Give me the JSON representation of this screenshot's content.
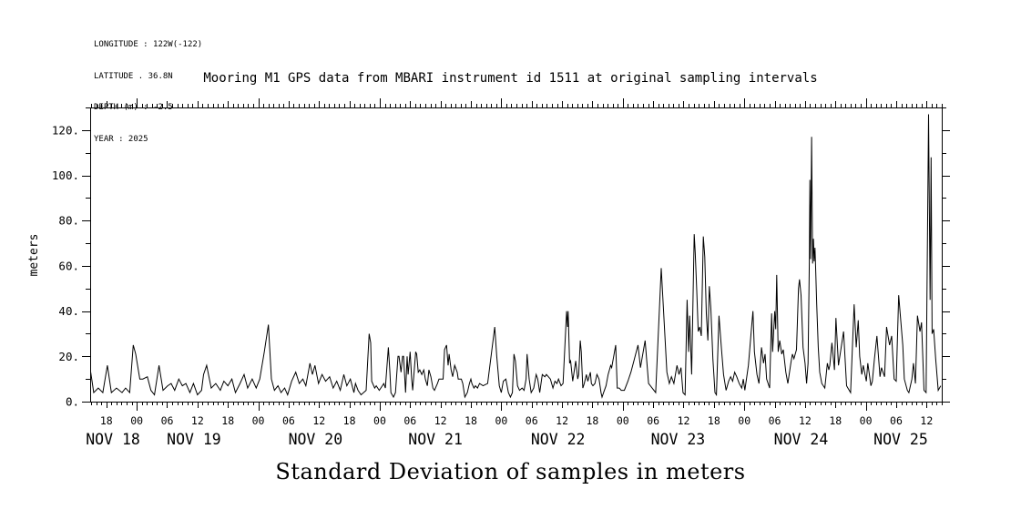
{
  "metadata_block": {
    "lines": [
      "LONGITUDE : 122W(-122)",
      "LATITUDE . 36.8N",
      "DEPTH (m) : -2.5",
      "YEAR : 2025"
    ]
  },
  "colors": {
    "line": "#000000",
    "text": "#000000",
    "background": "#ffffff"
  },
  "chart_data": {
    "type": "line",
    "title": "Mooring M1 GPS data from MBARI instrument id 1511 at original sampling intervals",
    "xlabel": "Standard Deviation of samples in meters",
    "ylabel": "meters",
    "ylim": [
      0,
      130
    ],
    "yticks": [
      0,
      20,
      40,
      60,
      80,
      100,
      120
    ],
    "ytick_label_suffix": ".",
    "ytick_minor_step": 10,
    "grid": "off",
    "legend": "none",
    "x_unit": "hours since Nov 18 00:00 (year 2025)",
    "x_hours_range": [
      14.8,
      183
    ],
    "minor_tick_hours": 1,
    "hour_ticks": [
      {
        "t": 18,
        "label": "18"
      },
      {
        "t": 24,
        "label": "00"
      },
      {
        "t": 30,
        "label": "06"
      },
      {
        "t": 36,
        "label": "12"
      },
      {
        "t": 42,
        "label": "18"
      },
      {
        "t": 48,
        "label": "00"
      },
      {
        "t": 54,
        "label": "06"
      },
      {
        "t": 60,
        "label": "12"
      },
      {
        "t": 66,
        "label": "18"
      },
      {
        "t": 72,
        "label": "00"
      },
      {
        "t": 78,
        "label": "06"
      },
      {
        "t": 84,
        "label": "12"
      },
      {
        "t": 90,
        "label": "18"
      },
      {
        "t": 96,
        "label": "00"
      },
      {
        "t": 102,
        "label": "06"
      },
      {
        "t": 108,
        "label": "12"
      },
      {
        "t": 114,
        "label": "18"
      },
      {
        "t": 120,
        "label": "00"
      },
      {
        "t": 126,
        "label": "06"
      },
      {
        "t": 132,
        "label": "12"
      },
      {
        "t": 138,
        "label": "18"
      },
      {
        "t": 144,
        "label": "00"
      },
      {
        "t": 150,
        "label": "06"
      },
      {
        "t": 156,
        "label": "12"
      },
      {
        "t": 162,
        "label": "18"
      },
      {
        "t": 168,
        "label": "00"
      },
      {
        "t": 174,
        "label": "06"
      },
      {
        "t": 180,
        "label": "12"
      }
    ],
    "day_labels": [
      {
        "t": 19.3,
        "label": "NOV 18"
      },
      {
        "t": 35.3,
        "label": "NOV 19"
      },
      {
        "t": 59.3,
        "label": "NOV 20"
      },
      {
        "t": 83,
        "label": "NOV 21"
      },
      {
        "t": 107.2,
        "label": "NOV 22"
      },
      {
        "t": 130.9,
        "label": "NOV 23"
      },
      {
        "t": 155.2,
        "label": "NOV 24"
      },
      {
        "t": 174.9,
        "label": "NOV 25"
      }
    ],
    "points": [
      [
        14.9,
        13
      ],
      [
        15.5,
        4
      ],
      [
        16.4,
        6
      ],
      [
        17.3,
        4
      ],
      [
        18.2,
        16
      ],
      [
        19,
        4
      ],
      [
        20,
        6
      ],
      [
        21.1,
        4
      ],
      [
        21.8,
        6
      ],
      [
        22.6,
        4
      ],
      [
        23.3,
        25
      ],
      [
        23.8,
        21
      ],
      [
        24.6,
        10
      ],
      [
        25.2,
        10
      ],
      [
        26.1,
        11
      ],
      [
        26.8,
        5
      ],
      [
        27.5,
        3
      ],
      [
        28.4,
        16
      ],
      [
        29.2,
        5
      ],
      [
        30.1,
        7
      ],
      [
        30.8,
        8
      ],
      [
        31.5,
        5
      ],
      [
        32.3,
        10
      ],
      [
        33,
        7
      ],
      [
        33.7,
        8
      ],
      [
        34.5,
        4
      ],
      [
        35.2,
        8
      ],
      [
        36,
        3
      ],
      [
        36.8,
        5
      ],
      [
        37.2,
        12
      ],
      [
        37.8,
        16
      ],
      [
        38.7,
        6
      ],
      [
        39.6,
        8
      ],
      [
        40.5,
        5
      ],
      [
        41.2,
        9
      ],
      [
        42,
        7
      ],
      [
        42.8,
        10
      ],
      [
        43.5,
        4
      ],
      [
        44.4,
        8
      ],
      [
        45.2,
        12
      ],
      [
        45.9,
        6
      ],
      [
        46.8,
        10
      ],
      [
        47.6,
        6
      ],
      [
        48.3,
        10
      ],
      [
        49.2,
        22
      ],
      [
        50,
        34
      ],
      [
        50.6,
        10
      ],
      [
        51.2,
        5
      ],
      [
        51.9,
        7
      ],
      [
        52.5,
        4
      ],
      [
        53.2,
        6
      ],
      [
        53.8,
        3
      ],
      [
        54.6,
        9
      ],
      [
        55.4,
        13
      ],
      [
        56.1,
        8
      ],
      [
        56.8,
        10
      ],
      [
        57.4,
        7
      ],
      [
        58.2,
        17
      ],
      [
        58.7,
        12
      ],
      [
        59.2,
        16
      ],
      [
        59.9,
        8
      ],
      [
        60.6,
        12
      ],
      [
        61.3,
        9
      ],
      [
        62.1,
        11
      ],
      [
        62.8,
        6
      ],
      [
        63.5,
        9
      ],
      [
        64.2,
        5
      ],
      [
        64.9,
        12
      ],
      [
        65.5,
        7
      ],
      [
        66.2,
        10
      ],
      [
        66.9,
        4
      ],
      [
        67.2,
        8
      ],
      [
        67.7,
        5
      ],
      [
        68.3,
        3
      ],
      [
        69.3,
        5
      ],
      [
        69.9,
        30
      ],
      [
        70.2,
        26
      ],
      [
        70.4,
        9
      ],
      [
        71,
        6
      ],
      [
        71.3,
        7
      ],
      [
        71.9,
        5
      ],
      [
        72.2,
        6
      ],
      [
        72.8,
        8
      ],
      [
        73.1,
        6
      ],
      [
        73.7,
        24
      ],
      [
        74,
        13
      ],
      [
        74.2,
        4
      ],
      [
        74.7,
        2
      ],
      [
        75.1,
        4
      ],
      [
        75.6,
        20
      ],
      [
        75.8,
        20
      ],
      [
        76.2,
        13
      ],
      [
        76.5,
        20
      ],
      [
        76.7,
        20
      ],
      [
        77.1,
        4
      ],
      [
        77.4,
        20
      ],
      [
        77.6,
        12
      ],
      [
        78,
        22
      ],
      [
        78.3,
        10
      ],
      [
        78.5,
        5
      ],
      [
        79.1,
        22
      ],
      [
        79.3,
        21
      ],
      [
        79.6,
        13
      ],
      [
        79.9,
        14
      ],
      [
        80.3,
        12
      ],
      [
        80.7,
        14
      ],
      [
        81,
        10
      ],
      [
        81.4,
        7
      ],
      [
        81.7,
        14
      ],
      [
        82.1,
        11
      ],
      [
        82.5,
        6
      ],
      [
        82.8,
        5
      ],
      [
        83.4,
        8
      ],
      [
        83.7,
        10
      ],
      [
        84.1,
        10
      ],
      [
        84.5,
        10
      ],
      [
        84.8,
        23
      ],
      [
        85.2,
        25
      ],
      [
        85.5,
        16
      ],
      [
        85.7,
        21
      ],
      [
        86.1,
        14
      ],
      [
        86.4,
        11
      ],
      [
        86.8,
        16
      ],
      [
        87.3,
        13
      ],
      [
        87.5,
        10
      ],
      [
        88.1,
        10
      ],
      [
        88.4,
        8
      ],
      [
        88.8,
        2
      ],
      [
        89.3,
        4
      ],
      [
        89.7,
        8
      ],
      [
        90,
        10
      ],
      [
        90.2,
        8
      ],
      [
        90.6,
        6
      ],
      [
        90.9,
        7
      ],
      [
        91.3,
        6
      ],
      [
        91.7,
        8
      ],
      [
        92.4,
        7
      ],
      [
        93.3,
        8
      ],
      [
        94.7,
        33
      ],
      [
        95.1,
        20
      ],
      [
        95.6,
        7
      ],
      [
        96,
        4
      ],
      [
        96.4,
        9
      ],
      [
        96.9,
        10
      ],
      [
        97.4,
        4
      ],
      [
        97.8,
        2
      ],
      [
        98.2,
        4
      ],
      [
        98.5,
        21
      ],
      [
        98.8,
        18
      ],
      [
        99.2,
        7
      ],
      [
        99.6,
        5
      ],
      [
        100.1,
        6
      ],
      [
        100.5,
        5
      ],
      [
        100.9,
        10
      ],
      [
        101.1,
        21
      ],
      [
        101.5,
        10
      ],
      [
        101.9,
        4
      ],
      [
        102.4,
        6
      ],
      [
        102.9,
        12
      ],
      [
        103.2,
        10
      ],
      [
        103.6,
        4
      ],
      [
        104.1,
        12
      ],
      [
        104.6,
        11
      ],
      [
        104.9,
        12
      ],
      [
        105.3,
        11
      ],
      [
        105.7,
        10
      ],
      [
        106.2,
        6
      ],
      [
        106.6,
        9
      ],
      [
        107,
        8
      ],
      [
        107.3,
        10
      ],
      [
        107.8,
        7
      ],
      [
        108.2,
        8
      ],
      [
        108.9,
        40
      ],
      [
        109.1,
        33
      ],
      [
        109.2,
        40
      ],
      [
        109.5,
        17
      ],
      [
        109.7,
        18
      ],
      [
        110.1,
        9
      ],
      [
        110.3,
        12
      ],
      [
        110.7,
        18
      ],
      [
        111.1,
        10
      ],
      [
        111.3,
        12
      ],
      [
        111.6,
        27
      ],
      [
        111.8,
        22
      ],
      [
        112.1,
        6
      ],
      [
        112.4,
        8
      ],
      [
        112.8,
        12
      ],
      [
        113.1,
        9
      ],
      [
        113.6,
        13
      ],
      [
        113.8,
        8
      ],
      [
        114.1,
        7
      ],
      [
        114.5,
        8
      ],
      [
        114.9,
        12
      ],
      [
        115.3,
        10
      ],
      [
        115.7,
        4
      ],
      [
        115.9,
        2
      ],
      [
        116.2,
        4
      ],
      [
        116.7,
        7
      ],
      [
        117.1,
        12
      ],
      [
        117.6,
        16
      ],
      [
        117.8,
        15
      ],
      [
        118.6,
        25
      ],
      [
        118.9,
        6
      ],
      [
        119.3,
        6
      ],
      [
        119.7,
        5
      ],
      [
        120.3,
        5
      ],
      [
        121,
        9
      ],
      [
        121.6,
        13
      ],
      [
        122.2,
        18
      ],
      [
        123,
        25
      ],
      [
        123.5,
        15
      ],
      [
        124.4,
        27
      ],
      [
        125.1,
        8
      ],
      [
        125.8,
        6
      ],
      [
        126.5,
        4
      ],
      [
        127.6,
        59
      ],
      [
        128.7,
        13
      ],
      [
        129.2,
        8
      ],
      [
        129.6,
        11
      ],
      [
        130.1,
        8
      ],
      [
        130.7,
        16
      ],
      [
        131.1,
        12
      ],
      [
        131.5,
        15
      ],
      [
        131.9,
        4
      ],
      [
        132.3,
        3
      ],
      [
        132.7,
        45
      ],
      [
        133,
        22
      ],
      [
        133.2,
        38
      ],
      [
        133.6,
        12
      ],
      [
        134.1,
        74
      ],
      [
        134.3,
        66
      ],
      [
        134.6,
        49
      ],
      [
        134.9,
        31
      ],
      [
        135.2,
        33
      ],
      [
        135.5,
        29
      ],
      [
        135.9,
        73
      ],
      [
        136.2,
        64
      ],
      [
        136.5,
        39
      ],
      [
        136.8,
        27
      ],
      [
        137.1,
        51
      ],
      [
        137.4,
        41
      ],
      [
        137.8,
        19
      ],
      [
        138.2,
        4
      ],
      [
        138.5,
        3
      ],
      [
        139,
        38
      ],
      [
        139.5,
        23
      ],
      [
        139.9,
        12
      ],
      [
        140.4,
        5
      ],
      [
        140.9,
        9
      ],
      [
        141.3,
        11
      ],
      [
        141.7,
        9
      ],
      [
        142.1,
        13
      ],
      [
        142.5,
        11
      ],
      [
        143,
        8
      ],
      [
        143.5,
        6
      ],
      [
        143.8,
        10
      ],
      [
        144.1,
        5
      ],
      [
        144.8,
        16
      ],
      [
        145.4,
        32
      ],
      [
        145.7,
        40
      ],
      [
        146,
        22
      ],
      [
        146.5,
        12
      ],
      [
        146.9,
        8
      ],
      [
        147.4,
        24
      ],
      [
        147.8,
        17
      ],
      [
        148.1,
        21
      ],
      [
        148.4,
        10
      ],
      [
        149,
        6
      ],
      [
        149.4,
        39
      ],
      [
        149.6,
        22
      ],
      [
        150,
        40
      ],
      [
        150.2,
        32
      ],
      [
        150.4,
        56
      ],
      [
        150.7,
        22
      ],
      [
        151,
        27
      ],
      [
        151.4,
        21
      ],
      [
        151.7,
        23
      ],
      [
        152.2,
        13
      ],
      [
        152.6,
        8
      ],
      [
        153.2,
        17
      ],
      [
        153.5,
        21
      ],
      [
        153.8,
        19
      ],
      [
        154.3,
        23
      ],
      [
        154.7,
        50
      ],
      [
        154.9,
        54
      ],
      [
        155.2,
        47
      ],
      [
        155.6,
        24
      ],
      [
        156,
        17
      ],
      [
        156.3,
        8
      ],
      [
        156.6,
        17
      ],
      [
        156.85,
        62
      ],
      [
        156.95,
        98
      ],
      [
        157.1,
        63
      ],
      [
        157.3,
        117
      ],
      [
        157.5,
        61
      ],
      [
        157.65,
        72
      ],
      [
        157.8,
        62
      ],
      [
        157.95,
        68
      ],
      [
        158.1,
        58
      ],
      [
        158.3,
        43
      ],
      [
        158.6,
        24
      ],
      [
        158.9,
        13
      ],
      [
        159.3,
        8
      ],
      [
        159.9,
        6
      ],
      [
        160.4,
        17
      ],
      [
        160.7,
        14
      ],
      [
        160.9,
        16
      ],
      [
        161.3,
        26
      ],
      [
        161.8,
        14
      ],
      [
        162.1,
        37
      ],
      [
        162.6,
        16
      ],
      [
        163.6,
        31
      ],
      [
        164.2,
        7
      ],
      [
        165,
        4
      ],
      [
        165.7,
        43
      ],
      [
        166.1,
        24
      ],
      [
        166.5,
        36
      ],
      [
        166.8,
        20
      ],
      [
        167.2,
        12
      ],
      [
        167.5,
        16
      ],
      [
        168.1,
        9
      ],
      [
        168.4,
        17
      ],
      [
        169,
        7
      ],
      [
        169.3,
        9
      ],
      [
        169.7,
        19
      ],
      [
        170.2,
        29
      ],
      [
        170.8,
        11
      ],
      [
        171.1,
        15
      ],
      [
        171.7,
        11
      ],
      [
        172.1,
        33
      ],
      [
        172.7,
        25
      ],
      [
        173.1,
        29
      ],
      [
        173.6,
        10
      ],
      [
        174,
        9
      ],
      [
        174.5,
        47
      ],
      [
        175.3,
        25
      ],
      [
        175.6,
        10
      ],
      [
        176.2,
        5
      ],
      [
        176.5,
        4
      ],
      [
        177.1,
        10
      ],
      [
        177.4,
        17
      ],
      [
        177.8,
        8
      ],
      [
        178.2,
        38
      ],
      [
        178.7,
        31
      ],
      [
        179,
        35
      ],
      [
        179.5,
        5
      ],
      [
        179.9,
        4
      ],
      [
        180.4,
        127
      ],
      [
        180.7,
        45
      ],
      [
        180.9,
        108
      ],
      [
        181.1,
        30
      ],
      [
        181.4,
        32
      ],
      [
        181.8,
        19
      ],
      [
        182.3,
        5
      ],
      [
        182.8,
        7
      ]
    ]
  }
}
